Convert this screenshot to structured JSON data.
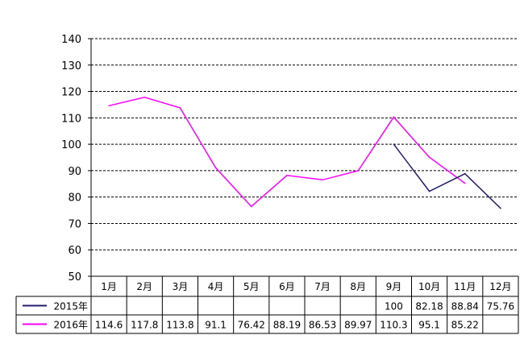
{
  "chart_data": {
    "type": "line",
    "categories": [
      "1月",
      "2月",
      "3月",
      "4月",
      "5月",
      "6月",
      "7月",
      "8月",
      "9月",
      "10月",
      "11月",
      "12月"
    ],
    "ylim": [
      50,
      140
    ],
    "yticks": [
      140,
      130,
      120,
      110,
      100,
      90,
      80,
      70,
      60,
      50
    ],
    "grid": true,
    "legend_placement": "data-table-left",
    "series": [
      {
        "name": "2015年",
        "color": "#1f1f6e",
        "values": [
          null,
          null,
          null,
          null,
          null,
          null,
          null,
          null,
          100,
          82.18,
          88.84,
          75.76
        ],
        "labels": [
          "",
          "",
          "",
          "",
          "",
          "",
          "",
          "",
          "100",
          "82.18",
          "88.84",
          "75.76"
        ]
      },
      {
        "name": "2016年",
        "color": "#ff00ff",
        "values": [
          114.6,
          117.8,
          113.8,
          91.1,
          76.42,
          88.19,
          86.53,
          89.97,
          110.3,
          95.1,
          85.22,
          null
        ],
        "labels": [
          "114.6",
          "117.8",
          "113.8",
          "91.1",
          "76.42",
          "88.19",
          "86.53",
          "89.97",
          "110.3",
          "95.1",
          "85.22",
          ""
        ]
      }
    ]
  }
}
